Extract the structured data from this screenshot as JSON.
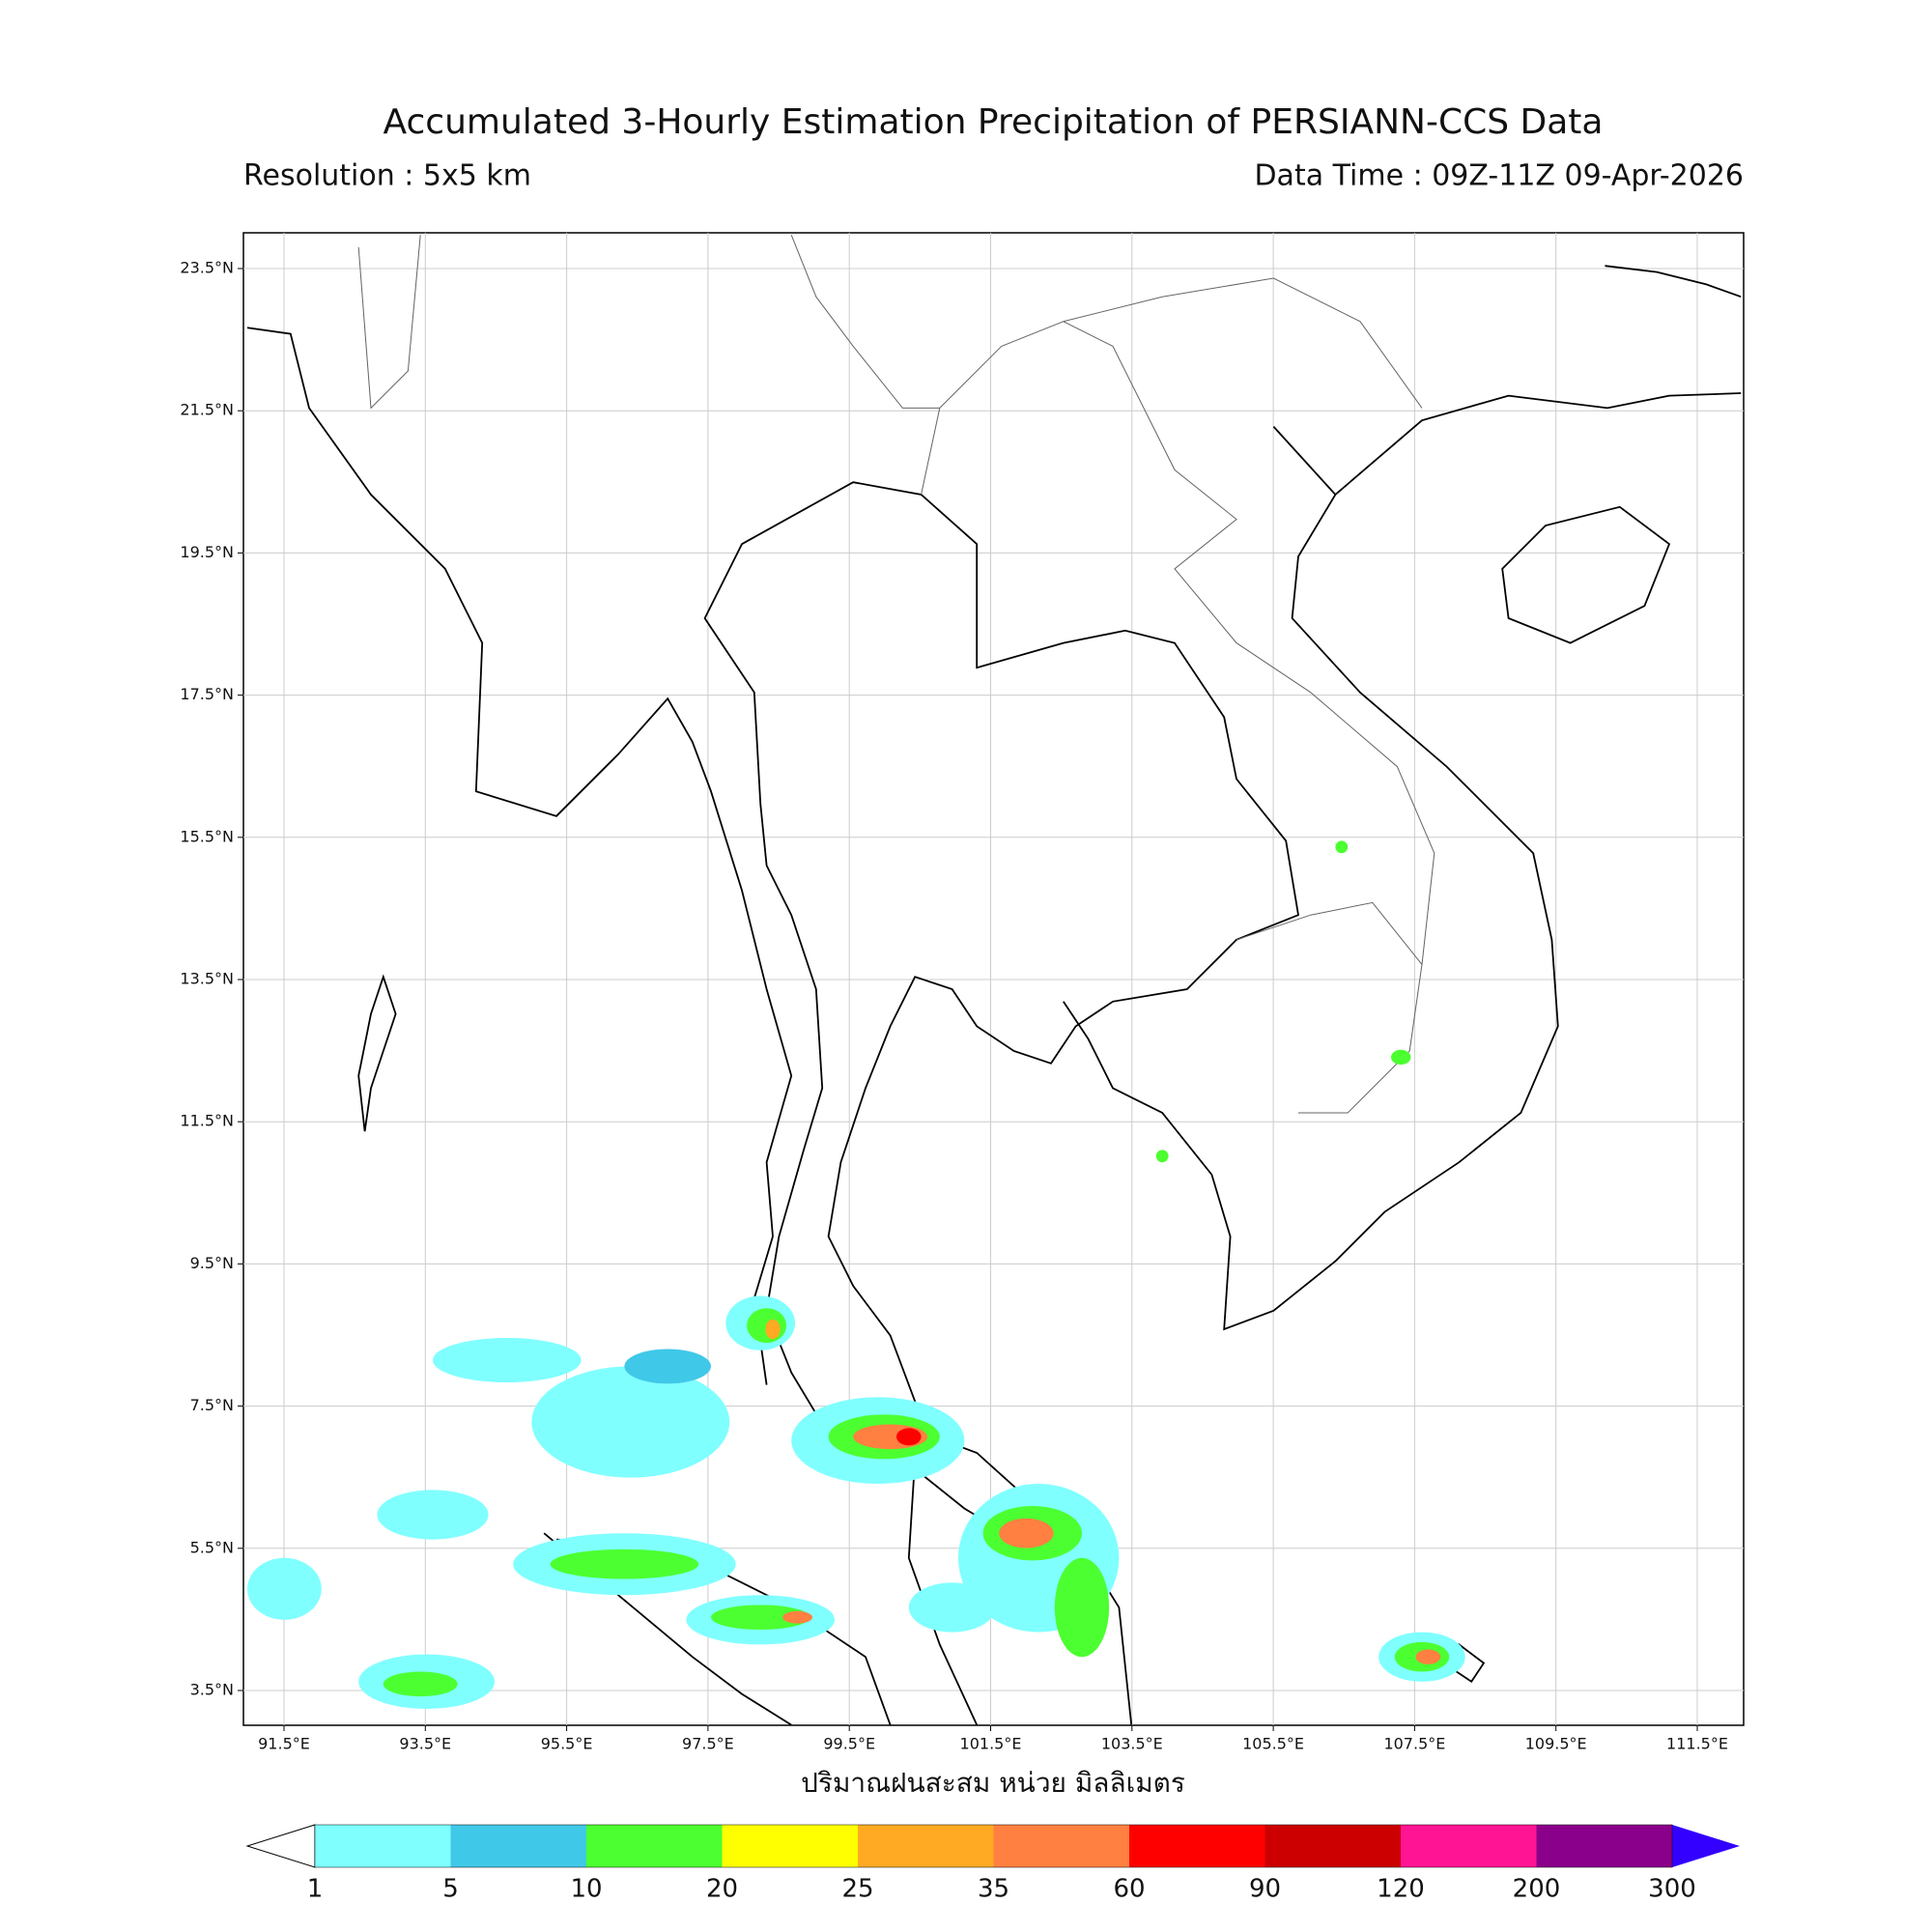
{
  "title": "Accumulated 3-Hourly Estimation Precipitation of PERSIANN-CCS Data",
  "resolution": "Resolution : 5x5 km",
  "data_time": "Data Time : 09Z-11Z 09-Apr-2026",
  "map": {
    "lat_ticks": [
      "23.5°N",
      "21.5°N",
      "19.5°N",
      "17.5°N",
      "15.5°N",
      "13.5°N",
      "11.5°N",
      "9.5°N",
      "7.5°N",
      "5.5°N",
      "3.5°N"
    ],
    "lon_ticks": [
      "91.5°E",
      "93.5°E",
      "95.5°E",
      "97.5°E",
      "99.5°E",
      "101.5°E",
      "103.5°E",
      "105.5°E",
      "107.5°E",
      "109.5°E",
      "111.5°E"
    ]
  },
  "xlabel": "ปริมาณฝนสะสม หน่วย มิลลิเมตร",
  "colorbar": {
    "levels": [
      1,
      5,
      10,
      20,
      25,
      35,
      60,
      90,
      120,
      200,
      300
    ],
    "colors": [
      "#80ffff",
      "#40c8e8",
      "#4cff30",
      "#ffff00",
      "#ffaa22",
      "#ff8040",
      "#ff0000",
      "#cc0000",
      "#ff1493",
      "#8b008b"
    ],
    "under_color": "#ffffff",
    "over_color": "#3300ff"
  }
}
